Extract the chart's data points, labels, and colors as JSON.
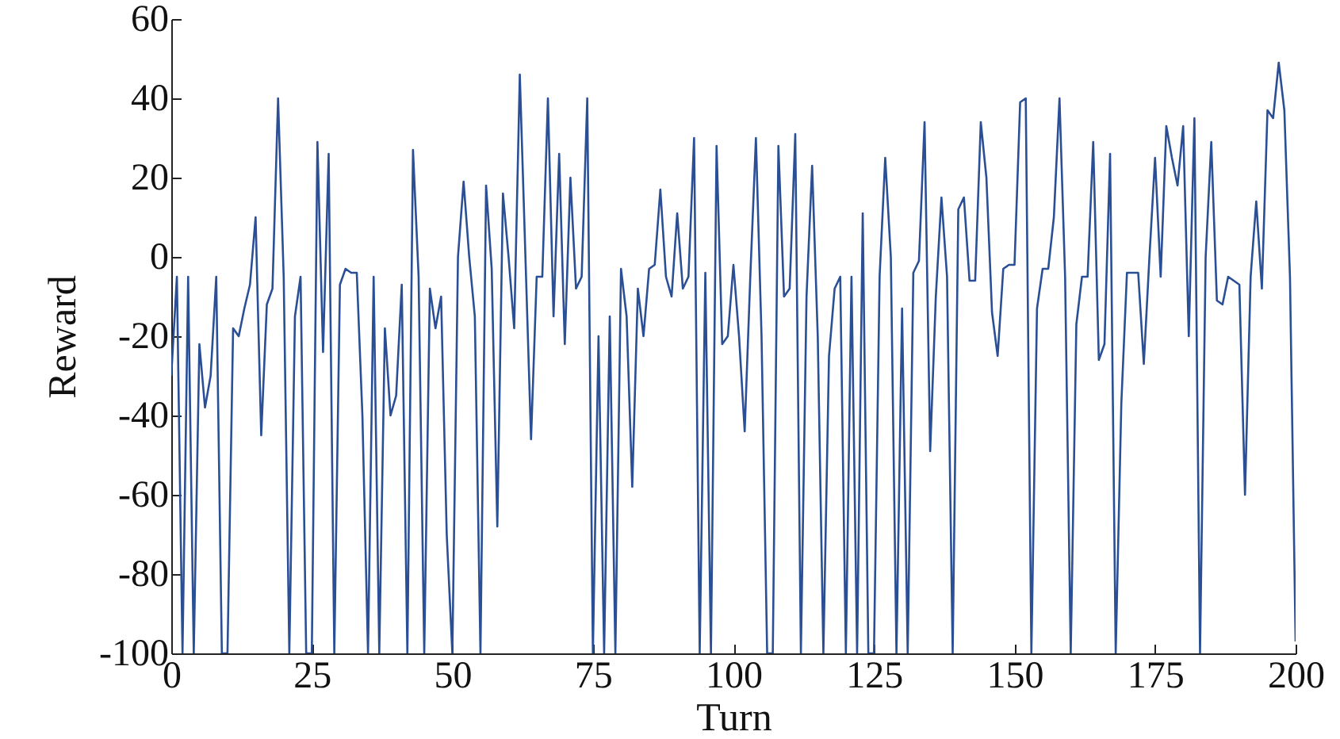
{
  "chart_data": {
    "type": "line",
    "xlabel": "Turn",
    "ylabel": "Reward",
    "x": [
      0,
      1,
      2,
      3,
      4,
      5,
      6,
      7,
      8,
      9,
      10,
      11,
      12,
      13,
      14,
      15,
      16,
      17,
      18,
      19,
      20,
      21,
      22,
      23,
      24,
      25,
      26,
      27,
      28,
      29,
      30,
      31,
      32,
      33,
      34,
      35,
      36,
      37,
      38,
      39,
      40,
      41,
      42,
      43,
      44,
      45,
      46,
      47,
      48,
      49,
      50,
      51,
      52,
      53,
      54,
      55,
      56,
      57,
      58,
      59,
      60,
      61,
      62,
      63,
      64,
      65,
      66,
      67,
      68,
      69,
      70,
      71,
      72,
      73,
      74,
      75,
      76,
      77,
      78,
      79,
      80,
      81,
      82,
      83,
      84,
      85,
      86,
      87,
      88,
      89,
      90,
      91,
      92,
      93,
      94,
      95,
      96,
      97,
      98,
      99,
      100,
      101,
      102,
      103,
      104,
      105,
      106,
      107,
      108,
      109,
      110,
      111,
      112,
      113,
      114,
      115,
      116,
      117,
      118,
      119,
      120,
      121,
      122,
      123,
      124,
      125,
      126,
      127,
      128,
      129,
      130,
      131,
      132,
      133,
      134,
      135,
      136,
      137,
      138,
      139,
      140,
      141,
      142,
      143,
      144,
      145,
      146,
      147,
      148,
      149,
      150,
      151,
      152,
      153,
      154,
      155,
      156,
      157,
      158,
      159,
      160,
      161,
      162,
      163,
      164,
      165,
      166,
      167,
      168,
      169,
      170,
      171,
      172,
      173,
      174,
      175,
      176,
      177,
      178,
      179,
      180,
      181,
      182,
      183,
      184,
      185,
      186,
      187,
      188,
      189,
      190,
      191,
      192,
      193,
      194,
      195,
      196,
      197,
      198,
      199,
      200
    ],
    "series": [
      {
        "color": "#2b4f95",
        "values": [
          -30,
          -5,
          -100,
          -5,
          -100,
          -22,
          -38,
          -30,
          -5,
          -100,
          -100,
          -18,
          -20,
          -13,
          -7,
          10,
          -45,
          -12,
          -8,
          40,
          -5,
          -100,
          -15,
          -5,
          -100,
          -100,
          29,
          -24,
          26,
          -100,
          -7,
          -3,
          -4,
          -4,
          -40,
          -100,
          -5,
          -100,
          -18,
          -40,
          -35,
          -7,
          -100,
          27,
          -5,
          -100,
          -8,
          -18,
          -10,
          -70,
          -100,
          0,
          19,
          0,
          -15,
          -100,
          18,
          -3,
          -68,
          16,
          0,
          -18,
          46,
          0,
          -46,
          -5,
          -5,
          40,
          -15,
          26,
          -22,
          20,
          -8,
          -5,
          40,
          -100,
          -20,
          -100,
          -15,
          -100,
          -3,
          -15,
          -58,
          -8,
          -20,
          -3,
          -2,
          17,
          -5,
          -10,
          11,
          -8,
          -5,
          30,
          -100,
          -4,
          -100,
          28,
          -22,
          -20,
          -2,
          -20,
          -44,
          -5,
          30,
          -20,
          -100,
          -100,
          28,
          -10,
          -8,
          31,
          -100,
          -10,
          23,
          -20,
          -100,
          -25,
          -8,
          -5,
          -100,
          -5,
          -100,
          11,
          -100,
          -100,
          -5,
          25,
          0,
          -100,
          -13,
          -100,
          -4,
          -1,
          34,
          -49,
          -10,
          15,
          -5,
          -100,
          12,
          15,
          -6,
          -6,
          34,
          20,
          -14,
          -25,
          -3,
          -2,
          -2,
          39,
          40,
          -100,
          -13,
          -3,
          -3,
          10,
          40,
          -5,
          -100,
          -17,
          -5,
          -5,
          29,
          -26,
          -22,
          26,
          -100,
          -37,
          -4,
          -4,
          -4,
          -27,
          0,
          25,
          -5,
          33,
          25,
          18,
          33,
          -20,
          35,
          -100,
          0,
          29,
          -11,
          -12,
          -5,
          -6,
          -7,
          -60,
          -5,
          14,
          -8,
          37,
          35,
          49,
          37,
          -5,
          -97
        ]
      }
    ],
    "xlim": [
      0,
      200
    ],
    "xticks": [
      0,
      25,
      50,
      75,
      100,
      125,
      150,
      175,
      200
    ],
    "ylim": [
      -100,
      60
    ],
    "yticks": [
      -100,
      -80,
      -60,
      -40,
      -20,
      0,
      20,
      40,
      60
    ],
    "grid": false
  }
}
